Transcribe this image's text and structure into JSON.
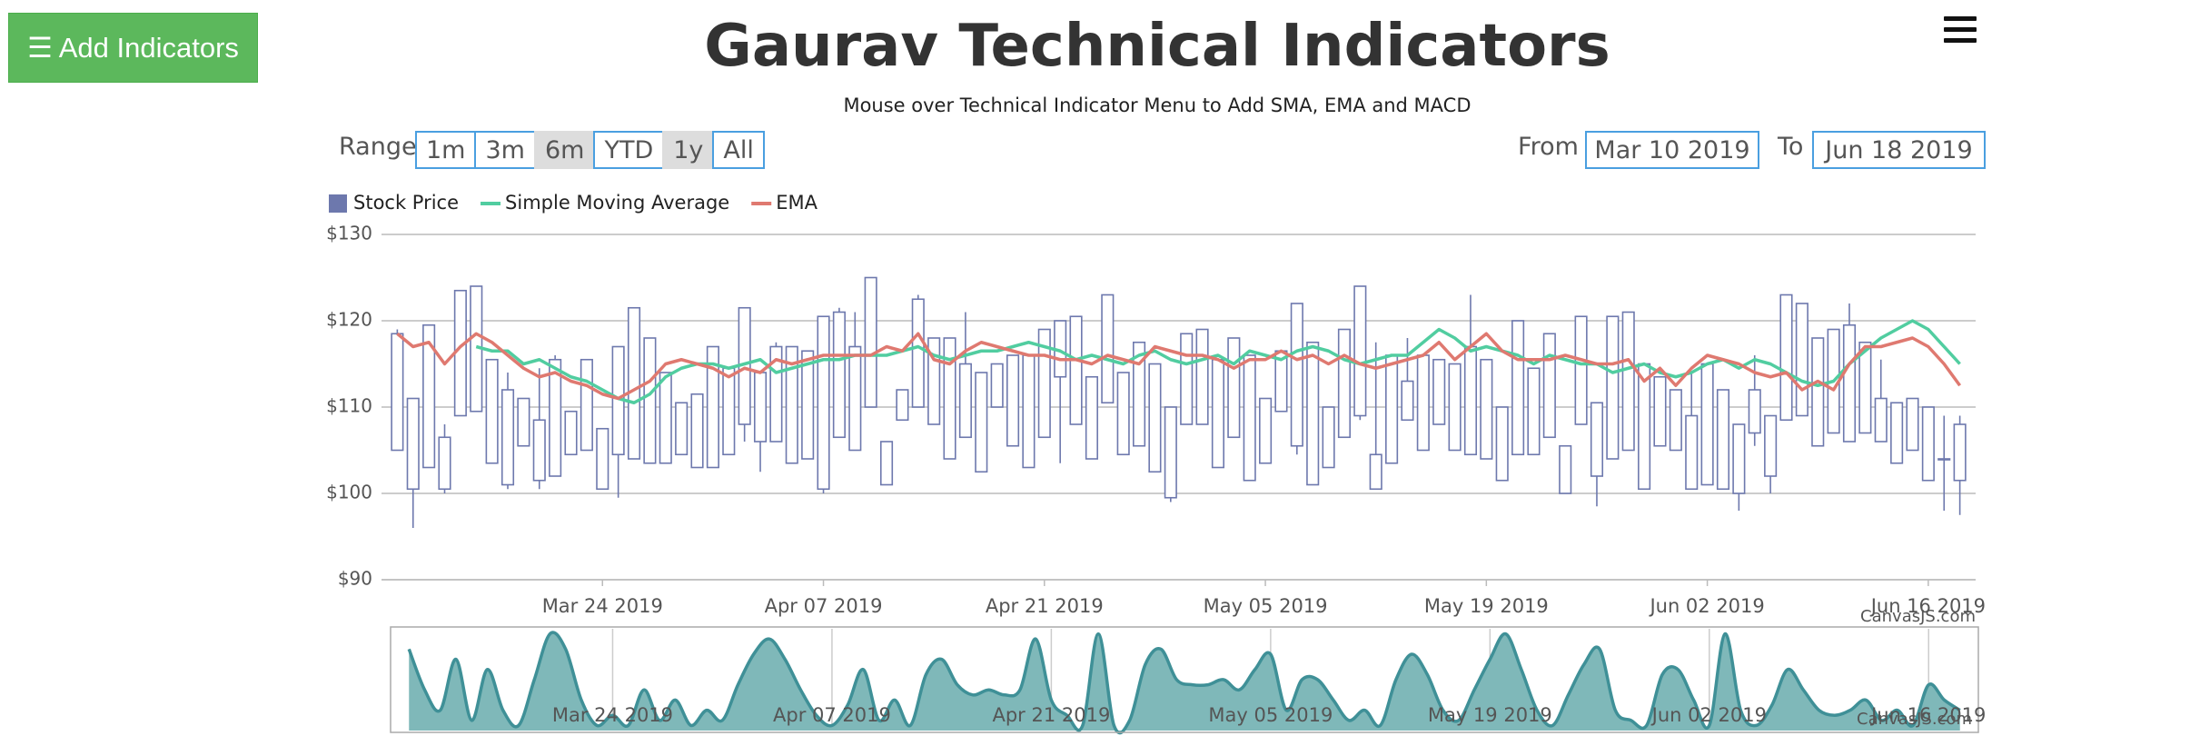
{
  "controls": {
    "button": "☰ Add Indicators",
    "range_label": "Range",
    "ranges": [
      "1m",
      "3m",
      "6m",
      "YTD",
      "1y",
      "All"
    ],
    "from_label": "From",
    "from": "Mar 10 2019",
    "to_label": "To",
    "to": "Jun 18 2019"
  },
  "chart_data": {
    "type": "candlestick",
    "title": "Gaurav Technical Indicators",
    "subtitle": "Mouse over Technical Indicator Menu to Add SMA, EMA and MACD",
    "x": [
      "2019-03-11",
      "2019-03-12",
      "2019-03-13",
      "2019-03-14",
      "2019-03-15",
      "2019-03-16",
      "2019-03-17",
      "2019-03-18",
      "2019-03-19",
      "2019-03-20",
      "2019-03-21",
      "2019-03-22",
      "2019-03-23",
      "2019-03-24",
      "2019-03-25",
      "2019-03-26",
      "2019-03-27",
      "2019-03-28",
      "2019-03-29",
      "2019-03-30",
      "2019-03-31",
      "2019-04-01",
      "2019-04-02",
      "2019-04-03",
      "2019-04-04",
      "2019-04-05",
      "2019-04-06",
      "2019-04-07",
      "2019-04-08",
      "2019-04-09",
      "2019-04-10",
      "2019-04-11",
      "2019-04-12",
      "2019-04-13",
      "2019-04-14",
      "2019-04-15",
      "2019-04-16",
      "2019-04-17",
      "2019-04-18",
      "2019-04-19",
      "2019-04-20",
      "2019-04-21",
      "2019-04-22",
      "2019-04-23",
      "2019-04-24",
      "2019-04-25",
      "2019-04-26",
      "2019-04-27",
      "2019-04-28",
      "2019-04-29",
      "2019-04-30",
      "2019-05-01",
      "2019-05-02",
      "2019-05-03",
      "2019-05-04",
      "2019-05-05",
      "2019-05-06",
      "2019-05-07",
      "2019-05-08",
      "2019-05-09",
      "2019-05-10",
      "2019-05-11",
      "2019-05-12",
      "2019-05-13",
      "2019-05-14",
      "2019-05-15",
      "2019-05-16",
      "2019-05-17",
      "2019-05-18",
      "2019-05-19",
      "2019-05-20",
      "2019-05-21",
      "2019-05-22",
      "2019-05-23",
      "2019-05-24",
      "2019-05-25",
      "2019-05-26",
      "2019-05-27",
      "2019-05-28",
      "2019-05-29",
      "2019-05-30",
      "2019-05-31",
      "2019-06-01",
      "2019-06-02",
      "2019-06-03",
      "2019-06-04",
      "2019-06-05",
      "2019-06-06",
      "2019-06-07",
      "2019-06-08",
      "2019-06-09",
      "2019-06-10",
      "2019-06-11",
      "2019-06-12",
      "2019-06-13",
      "2019-06-14",
      "2019-06-15",
      "2019-06-16",
      "2019-06-17",
      "2019-06-18"
    ],
    "xlim": [
      "2019-03-10",
      "2019-06-19"
    ],
    "xticks": [
      {
        "value": "2019-03-24",
        "label": "Mar 24 2019"
      },
      {
        "value": "2019-04-07",
        "label": "Apr 07 2019"
      },
      {
        "value": "2019-04-21",
        "label": "Apr 21 2019"
      },
      {
        "value": "2019-05-05",
        "label": "May 05 2019"
      },
      {
        "value": "2019-05-19",
        "label": "May 19 2019"
      },
      {
        "value": "2019-06-02",
        "label": "Jun 02 2019"
      },
      {
        "value": "2019-06-16",
        "label": "Jun 16 2019"
      }
    ],
    "ylim": [
      90,
      130
    ],
    "yticks": [
      {
        "value": 90,
        "label": "$90"
      },
      {
        "value": 100,
        "label": "$100"
      },
      {
        "value": 110,
        "label": "$110"
      },
      {
        "value": 120,
        "label": "$120"
      },
      {
        "value": 130,
        "label": "$130"
      }
    ],
    "grid": true,
    "legend": "top-left",
    "series": [
      {
        "name": "Stock Price",
        "type": "candlestick",
        "color": "#6d78ad",
        "values": [
          [
            118.5,
            119,
            105,
            105
          ],
          [
            111,
            111,
            96,
            100.5
          ],
          [
            103,
            119.5,
            103,
            119.5
          ],
          [
            100.5,
            108,
            100,
            106.5
          ],
          [
            109,
            123.5,
            109,
            123.5
          ],
          [
            124,
            124,
            109.5,
            109.5
          ],
          [
            115.5,
            115.5,
            103.5,
            103.5
          ],
          [
            101,
            114,
            100.5,
            112
          ],
          [
            105.5,
            111,
            105.5,
            111
          ],
          [
            101.5,
            114.5,
            100.5,
            108.5
          ],
          [
            115.5,
            116,
            102,
            102
          ],
          [
            104.5,
            109.5,
            104.5,
            109.5
          ],
          [
            115.5,
            115.5,
            105,
            105
          ],
          [
            107.5,
            107.5,
            100.5,
            100.5
          ],
          [
            104.5,
            117,
            99.5,
            117
          ],
          [
            121.5,
            121.5,
            104,
            104
          ],
          [
            103.5,
            118,
            103.5,
            118
          ],
          [
            114,
            114,
            103.5,
            103.5
          ],
          [
            110.5,
            110.5,
            104.5,
            104.5
          ],
          [
            103,
            111.5,
            103,
            111.5
          ],
          [
            117,
            117,
            103,
            103
          ],
          [
            104.5,
            114.5,
            104.5,
            114.5
          ],
          [
            108,
            121.5,
            106,
            121.5
          ],
          [
            106,
            114,
            102.5,
            114
          ],
          [
            117,
            117.5,
            106,
            106
          ],
          [
            103.5,
            117,
            103.5,
            117
          ],
          [
            116.5,
            116.5,
            104,
            104
          ],
          [
            100.5,
            120.5,
            100,
            120.5
          ],
          [
            121,
            121.5,
            106.5,
            106.5
          ],
          [
            105,
            121,
            105,
            117
          ],
          [
            110,
            125,
            110,
            125
          ],
          [
            106,
            106,
            101,
            101
          ],
          [
            108.5,
            112,
            108.5,
            112
          ],
          [
            122.5,
            123,
            110,
            110
          ],
          [
            118,
            118,
            108,
            108
          ],
          [
            104,
            118,
            104,
            118
          ],
          [
            115,
            121,
            106.5,
            106.5
          ],
          [
            102.5,
            114,
            102.5,
            114
          ],
          [
            110,
            115,
            110,
            115
          ],
          [
            105.5,
            116,
            105.5,
            116
          ],
          [
            116,
            116,
            103,
            103
          ],
          [
            106.5,
            119,
            106.5,
            119
          ],
          [
            113.5,
            120,
            103.5,
            120
          ],
          [
            108,
            120.5,
            108,
            120.5
          ],
          [
            113.5,
            113.5,
            104,
            104
          ],
          [
            110.5,
            123,
            110.5,
            123
          ],
          [
            114,
            114,
            104.5,
            104.5
          ],
          [
            105.5,
            117.5,
            105.5,
            117.5
          ],
          [
            115,
            115,
            102.5,
            102.5
          ],
          [
            99.5,
            110,
            99,
            110
          ],
          [
            108,
            118.5,
            108,
            118.5
          ],
          [
            119,
            119,
            108,
            108
          ],
          [
            115.5,
            115.5,
            103,
            103
          ],
          [
            106.5,
            118,
            106.5,
            118
          ],
          [
            116,
            116,
            101.5,
            101.5
          ],
          [
            103.5,
            111,
            103.5,
            111
          ],
          [
            116.5,
            116.5,
            109.5,
            109.5
          ],
          [
            105.5,
            122,
            104.5,
            122
          ],
          [
            117.5,
            117.5,
            101,
            101
          ],
          [
            110,
            110,
            103,
            103
          ],
          [
            119,
            119,
            106.5,
            106.5
          ],
          [
            109,
            124,
            108.5,
            124
          ],
          [
            104.5,
            117.5,
            100.5,
            100.5
          ],
          [
            103.5,
            116,
            103.5,
            116
          ],
          [
            113,
            118,
            108.5,
            108.5
          ],
          [
            105,
            116,
            105,
            116
          ],
          [
            108,
            115.5,
            108,
            115.5
          ],
          [
            105,
            115,
            105,
            115
          ],
          [
            104.5,
            123,
            104.5,
            117
          ],
          [
            104,
            115.5,
            104,
            115.5
          ],
          [
            110,
            110,
            101.5,
            101.5
          ],
          [
            104.5,
            120,
            104.5,
            120
          ],
          [
            114.5,
            114.5,
            104.5,
            104.5
          ],
          [
            106.5,
            118.5,
            106.5,
            118.5
          ],
          [
            105.5,
            105.5,
            100,
            100
          ],
          [
            108,
            120.5,
            108,
            120.5
          ],
          [
            110.5,
            110.5,
            98.5,
            102
          ],
          [
            104,
            120.5,
            104,
            120.5
          ],
          [
            121,
            121,
            105,
            105
          ],
          [
            100.5,
            115,
            100.5,
            115
          ],
          [
            113.5,
            113.5,
            105.5,
            105.5
          ],
          [
            112,
            112,
            105,
            105
          ],
          [
            109,
            114,
            100.5,
            100.5
          ],
          [
            101,
            115,
            101,
            115
          ],
          [
            112,
            112,
            100.5,
            100.5
          ],
          [
            108,
            108,
            98,
            100
          ],
          [
            112,
            116,
            105.5,
            107
          ],
          [
            102,
            109,
            100,
            109
          ],
          [
            108.5,
            123,
            108.5,
            123
          ],
          [
            122,
            122,
            109,
            109
          ],
          [
            105.5,
            118,
            105.5,
            118
          ],
          [
            107,
            119,
            107,
            119
          ],
          [
            119.5,
            122,
            106,
            106
          ],
          [
            117.5,
            117.5,
            107,
            107
          ],
          [
            111,
            115.5,
            106,
            106
          ],
          [
            103.5,
            110.5,
            103.5,
            110.5
          ],
          [
            111,
            111,
            105,
            105
          ],
          [
            101.5,
            110,
            101.5,
            110
          ],
          [
            104,
            109,
            98,
            104
          ],
          [
            101.5,
            109,
            97.5,
            108
          ]
        ]
      },
      {
        "name": "Simple Moving Average",
        "type": "line",
        "color": "#51cda0",
        "values": [
          null,
          null,
          null,
          null,
          null,
          117,
          116.5,
          116.5,
          115,
          115.5,
          114.5,
          113.5,
          113,
          112,
          111,
          110.5,
          111.5,
          113.5,
          114.5,
          115,
          115,
          114.5,
          115,
          115.5,
          114,
          114.5,
          115,
          115.5,
          115.5,
          116,
          116,
          116,
          116.5,
          117,
          116,
          115.5,
          116,
          116.5,
          116.5,
          117,
          117.5,
          117,
          116.5,
          115.5,
          116,
          115.5,
          115,
          116,
          116.5,
          115.5,
          115,
          115.5,
          116,
          115,
          116.5,
          116,
          115.5,
          116.5,
          117,
          116.5,
          115.5,
          115,
          115.5,
          116,
          116,
          117.5,
          119,
          118,
          116.5,
          117,
          116.5,
          116,
          115,
          116,
          115.5,
          115,
          115,
          114,
          114.5,
          115,
          114,
          113.5,
          114,
          115,
          115.5,
          114.5,
          115.5,
          115,
          114,
          113,
          112.5,
          113,
          115,
          116.5,
          118,
          119,
          120,
          119,
          117,
          115
        ]
      },
      {
        "name": "EMA",
        "type": "line",
        "color": "#df7970",
        "values": [
          118.5,
          117,
          117.5,
          115,
          117,
          118.5,
          117.5,
          116,
          114.5,
          113.5,
          114,
          113,
          112.5,
          111.5,
          111,
          112,
          113,
          115,
          115.5,
          115,
          114.5,
          113.5,
          114.5,
          114,
          115.5,
          115,
          115.5,
          116,
          116,
          116,
          116,
          117,
          116.5,
          118.5,
          115.5,
          115,
          116.5,
          117.5,
          117,
          116.5,
          116,
          116,
          115.5,
          115.5,
          115,
          116,
          115.5,
          115,
          117,
          116.5,
          116,
          116,
          115.5,
          114.5,
          115.5,
          115.5,
          116.5,
          115.5,
          116,
          115,
          116,
          115,
          114.5,
          115,
          115.5,
          116,
          117.5,
          115.5,
          117,
          118.5,
          116.5,
          115.5,
          115.5,
          115.5,
          116,
          115.5,
          115,
          115,
          115.5,
          113,
          114.5,
          112.5,
          114.5,
          116,
          115.5,
          115,
          114,
          113.5,
          114,
          112,
          113,
          112,
          115,
          117,
          117,
          117.5,
          118,
          117,
          115,
          112.5
        ]
      }
    ],
    "credit": "CanvasJS.com",
    "navigator": {
      "type": "area",
      "color": "#7fb8b9",
      "line_color": "#3f9097",
      "ylim": [
        0,
        100
      ],
      "values": [
        80,
        40,
        20,
        70,
        10,
        60,
        20,
        5,
        50,
        95,
        80,
        30,
        5,
        15,
        5,
        40,
        10,
        30,
        5,
        20,
        10,
        45,
        75,
        90,
        70,
        40,
        15,
        5,
        25,
        60,
        10,
        30,
        5,
        55,
        70,
        45,
        35,
        40,
        35,
        40,
        90,
        30,
        15,
        5,
        95,
        5,
        10,
        65,
        80,
        50,
        45,
        45,
        50,
        40,
        60,
        75,
        20,
        50,
        50,
        30,
        10,
        20,
        5,
        50,
        75,
        55,
        20,
        10,
        40,
        70,
        95,
        60,
        20,
        5,
        35,
        65,
        80,
        20,
        10,
        5,
        55,
        60,
        30,
        5,
        95,
        20,
        5,
        25,
        60,
        40,
        20,
        15,
        20,
        30,
        10,
        20,
        5,
        45,
        30,
        20
      ],
      "xticks": [
        {
          "value": "2019-03-24",
          "label": "Mar 24 2019"
        },
        {
          "value": "2019-04-07",
          "label": "Apr 07 2019"
        },
        {
          "value": "2019-04-21",
          "label": "Apr 21 2019"
        },
        {
          "value": "2019-05-05",
          "label": "May 05 2019"
        },
        {
          "value": "2019-05-19",
          "label": "May 19 2019"
        },
        {
          "value": "2019-06-02",
          "label": "Jun 02 2019"
        },
        {
          "value": "2019-06-16",
          "label": "Jun 16 2019"
        }
      ],
      "credit": "CanvasJS.com"
    }
  }
}
